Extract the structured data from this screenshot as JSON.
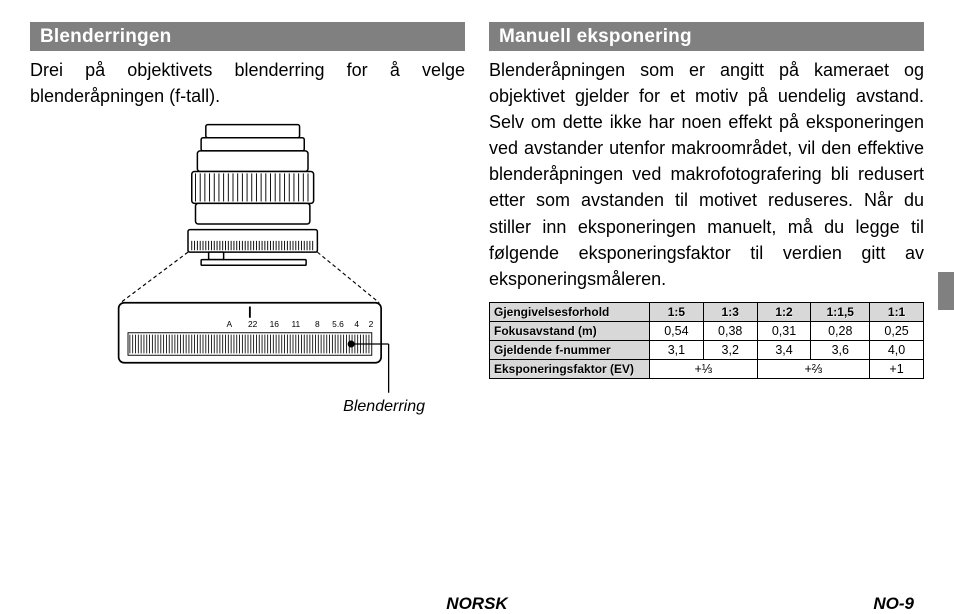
{
  "left": {
    "header": "Blenderringen",
    "body": "Drei på objektivets blenderring for å vel­ge blenderåpningen (f-tall).",
    "caption": "Blenderring",
    "aperture_scale": [
      "A",
      "22",
      "16",
      "11",
      "8",
      "5.6",
      "4",
      "2 "
    ]
  },
  "right": {
    "header": "Manuell eksponering",
    "body": "Blenderåpningen som er angitt på ka­meraet og objektivet gjelder for et motiv på uendelig avstand. Selv om dette ikke har noen effekt på eksponeringen ved avstander utenfor makroområdet, vil den effektive blenderåpningen ved ma­krofotografering bli redusert etter som avstanden til motivet reduseres. Når du stiller inn eksponeringen manuelt, må du legge til følgende eksponeringsfaktor til verdien gitt av eksponeringsmåleren."
  },
  "table": {
    "rows": [
      {
        "label": "Gjengivelsesforhold",
        "cells": [
          "1:5",
          "1:3",
          "1:2",
          "1:1,5",
          "1:1"
        ]
      },
      {
        "label": "Fokusavstand (m)",
        "cells": [
          "0,54",
          "0,38",
          "0,31",
          "0,28",
          "0,25"
        ]
      },
      {
        "label": "Gjeldende f-nummer",
        "cells": [
          "3,1",
          "3,2",
          "3,4",
          "3,6",
          "4,0"
        ]
      }
    ],
    "ev_row": {
      "label": "Eksponeringsfaktor (EV)",
      "cells": [
        "+⅓",
        "+⅔",
        "+1"
      ],
      "spans": [
        2,
        2,
        1
      ]
    }
  },
  "footer": {
    "lang": "NORSK",
    "page": "NO-9"
  },
  "colors": {
    "header_bg": "#808080",
    "header_fg": "#ffffff",
    "table_head_bg": "#d8d8d8",
    "page_bg": "#ffffff",
    "text": "#000000"
  }
}
